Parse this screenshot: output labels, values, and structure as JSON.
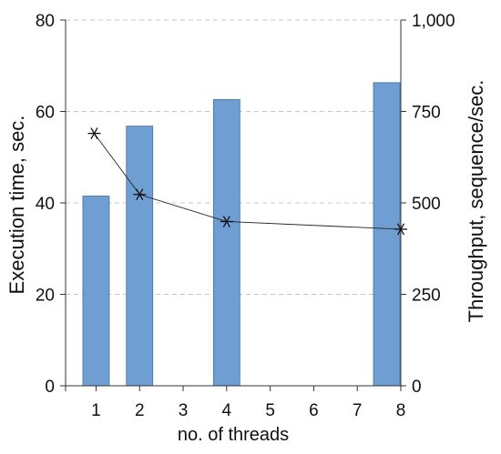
{
  "chart_data": {
    "type": "bar",
    "x": [
      1,
      2,
      3,
      4,
      5,
      6,
      7,
      8
    ],
    "xticks": [
      "1",
      "2",
      "3",
      "4",
      "5",
      "6",
      "7",
      "8"
    ],
    "xlabel": "no. of threads",
    "xlim": [
      0.3,
      8.0
    ],
    "grid": "horizontal dashed",
    "series": [
      {
        "type": "bar",
        "axis": "left",
        "x": [
          1,
          2,
          4,
          8
        ],
        "values": [
          41.5,
          56.8,
          62.6,
          66.3
        ],
        "color": "#6f9fd2"
      },
      {
        "type": "line",
        "axis": "right",
        "marker": "asterisk",
        "x": [
          1,
          2,
          4,
          8
        ],
        "values": [
          690,
          523,
          449,
          428
        ],
        "color": "#222222"
      }
    ],
    "y_left": {
      "label": "Execution time, sec.",
      "ylim": [
        0,
        80
      ],
      "ticks": [
        0,
        20,
        40,
        60,
        80
      ],
      "tick_labels": [
        "0",
        "20",
        "40",
        "60",
        "80"
      ]
    },
    "y_right": {
      "label": "Throughput, sequence/sec.",
      "ylim": [
        0,
        1000
      ],
      "ticks": [
        0,
        250,
        500,
        750,
        1000
      ],
      "tick_labels": [
        "0",
        "250",
        "500",
        "750",
        "1,000"
      ]
    }
  }
}
